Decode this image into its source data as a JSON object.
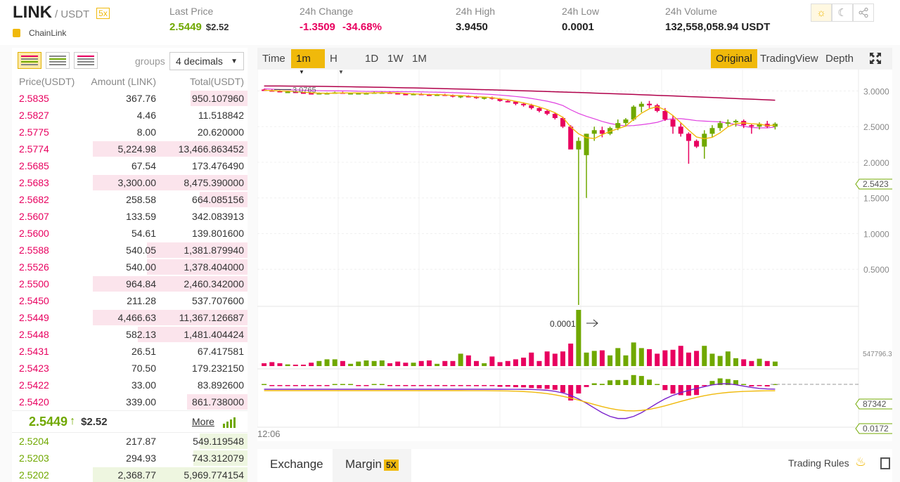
{
  "header": {
    "symbol": "LINK",
    "quote": "/ USDT",
    "leverage": "5x",
    "coin_name": "ChainLink",
    "last_price_label": "Last Price",
    "last_price": "2.5449",
    "last_price_usd": "$2.52",
    "change_label": "24h Change",
    "change_value": "-1.3509",
    "change_pct": "-34.68%",
    "high_label": "24h High",
    "high_value": "3.9450",
    "low_label": "24h Low",
    "low_value": "0.0001",
    "volume_label": "24h Volume",
    "volume_value": "132,558,058.94 USDT",
    "icons": [
      "sun-icon",
      "moon-icon",
      "share-icon"
    ]
  },
  "orderbook": {
    "groups_label": "groups",
    "decimals": "4 decimals",
    "col_price": "Price(USDT)",
    "col_amount": "Amount (LINK)",
    "col_total": "Total(USDT)",
    "asks": [
      {
        "price": "2.5835",
        "amount": "367.76",
        "total": "950.107960",
        "depth": 0.37
      },
      {
        "price": "2.5827",
        "amount": "4.46",
        "total": "11.518842",
        "depth": 0.0
      },
      {
        "price": "2.5775",
        "amount": "8.00",
        "total": "20.620000",
        "depth": 0.0
      },
      {
        "price": "2.5774",
        "amount": "5,224.98",
        "total": "13,466.863452",
        "depth": 1.0
      },
      {
        "price": "2.5685",
        "amount": "67.54",
        "total": "173.476490",
        "depth": 0.0
      },
      {
        "price": "2.5683",
        "amount": "3,300.00",
        "total": "8,475.390000",
        "depth": 1.0
      },
      {
        "price": "2.5682",
        "amount": "258.58",
        "total": "664.085156",
        "depth": 0.31
      },
      {
        "price": "2.5607",
        "amount": "133.59",
        "total": "342.083913",
        "depth": 0.0
      },
      {
        "price": "2.5600",
        "amount": "54.61",
        "total": "139.801600",
        "depth": 0.0
      },
      {
        "price": "2.5588",
        "amount": "540.05",
        "total": "1,381.879940",
        "depth": 0.65
      },
      {
        "price": "2.5526",
        "amount": "540.00",
        "total": "1,378.404000",
        "depth": 0.65
      },
      {
        "price": "2.5500",
        "amount": "964.84",
        "total": "2,460.342000",
        "depth": 1.0
      },
      {
        "price": "2.5450",
        "amount": "211.28",
        "total": "537.707600",
        "depth": 0.0
      },
      {
        "price": "2.5449",
        "amount": "4,466.63",
        "total": "11,367.126687",
        "depth": 1.0
      },
      {
        "price": "2.5448",
        "amount": "582.13",
        "total": "1,481.404424",
        "depth": 0.71
      },
      {
        "price": "2.5431",
        "amount": "26.51",
        "total": "67.417581",
        "depth": 0.0
      },
      {
        "price": "2.5423",
        "amount": "70.50",
        "total": "179.232150",
        "depth": 0.0
      },
      {
        "price": "2.5422",
        "amount": "33.00",
        "total": "83.892600",
        "depth": 0.0
      },
      {
        "price": "2.5420",
        "amount": "339.00",
        "total": "861.738000",
        "depth": 0.39
      }
    ],
    "mid_price": "2.5449",
    "mid_arrow": "↑",
    "mid_usd": "$2.52",
    "more_label": "More",
    "bids": [
      {
        "price": "2.5204",
        "amount": "217.87",
        "total": "549.119548",
        "depth": 0.31
      },
      {
        "price": "2.5203",
        "amount": "294.93",
        "total": "743.312079",
        "depth": 0.35
      },
      {
        "price": "2.5202",
        "amount": "2,368.77",
        "total": "5,969.774154",
        "depth": 1.0
      }
    ]
  },
  "chart": {
    "toolbar": {
      "time": "Time",
      "interval": "1m",
      "hour": "H",
      "day": "1D",
      "week": "1W",
      "month": "1M",
      "original": "Original",
      "tradingview": "TradingView",
      "depth": "Depth"
    },
    "annotation_high": "3.0765",
    "annotation_low": "0.0001",
    "price_tag": "2.5423",
    "volume_top": "547796.3",
    "volume_tag": "87342",
    "macd_tag": "0.0172",
    "time_label": "12:06",
    "colors": {
      "up": "#70a800",
      "down": "#e8005f",
      "ma7": "#f0b90b",
      "ma25": "#e040e0",
      "ma99": "#b0004a",
      "macd": "#7a22cc"
    }
  },
  "chart_data": {
    "type": "candlestick",
    "ylim": [
      0,
      3.3
    ],
    "price_ticks": [
      "3.0000",
      "2.5000",
      "2.0000",
      "1.5000",
      "1.0000",
      "0.5000"
    ],
    "price_tick_values": [
      3.0,
      2.5,
      2.0,
      1.5,
      1.0,
      0.5
    ],
    "candles": [
      [
        3.02,
        3.03,
        3.0,
        3.01
      ],
      [
        3.01,
        3.02,
        2.99,
        3.0
      ],
      [
        3.0,
        3.01,
        2.98,
        2.99
      ],
      [
        2.99,
        3.0,
        2.98,
        2.99
      ],
      [
        2.99,
        3.0,
        2.97,
        2.98
      ],
      [
        2.98,
        2.99,
        2.97,
        2.97
      ],
      [
        2.97,
        2.98,
        2.95,
        2.96
      ],
      [
        2.96,
        2.98,
        2.95,
        2.97
      ],
      [
        2.97,
        2.98,
        2.96,
        2.97
      ],
      [
        2.97,
        2.99,
        2.96,
        2.98
      ],
      [
        2.98,
        2.99,
        2.96,
        2.97
      ],
      [
        2.97,
        2.98,
        2.96,
        2.97
      ],
      [
        2.97,
        2.98,
        2.96,
        2.97
      ],
      [
        2.97,
        2.98,
        2.96,
        2.97
      ],
      [
        2.97,
        2.99,
        2.96,
        2.98
      ],
      [
        2.98,
        2.99,
        2.97,
        2.98
      ],
      [
        2.98,
        2.99,
        2.97,
        2.97
      ],
      [
        2.97,
        2.98,
        2.96,
        2.96
      ],
      [
        2.96,
        2.97,
        2.94,
        2.95
      ],
      [
        2.95,
        2.97,
        2.94,
        2.96
      ],
      [
        2.96,
        2.97,
        2.95,
        2.95
      ],
      [
        2.95,
        2.96,
        2.93,
        2.94
      ],
      [
        2.94,
        2.96,
        2.93,
        2.95
      ],
      [
        2.95,
        2.96,
        2.93,
        2.94
      ],
      [
        2.94,
        2.95,
        2.91,
        2.92
      ],
      [
        2.92,
        2.94,
        2.9,
        2.93
      ],
      [
        2.93,
        2.94,
        2.91,
        2.92
      ],
      [
        2.92,
        2.93,
        2.89,
        2.9
      ],
      [
        2.9,
        2.92,
        2.88,
        2.91
      ],
      [
        2.91,
        2.92,
        2.88,
        2.89
      ],
      [
        2.89,
        2.9,
        2.85,
        2.86
      ],
      [
        2.86,
        2.88,
        2.84,
        2.85
      ],
      [
        2.85,
        2.86,
        2.8,
        2.82
      ],
      [
        2.82,
        2.84,
        2.78,
        2.8
      ],
      [
        2.8,
        2.82,
        2.74,
        2.76
      ],
      [
        2.76,
        2.78,
        2.7,
        2.72
      ],
      [
        2.72,
        2.74,
        2.66,
        2.68
      ],
      [
        2.68,
        2.7,
        2.6,
        2.62
      ],
      [
        2.62,
        2.64,
        2.48,
        2.5
      ],
      [
        2.5,
        2.52,
        2.2,
        2.18
      ],
      [
        2.18,
        2.35,
        0.0001,
        2.3
      ],
      [
        2.1,
        2.4,
        1.5,
        2.4
      ],
      [
        2.4,
        2.5,
        2.3,
        2.45
      ],
      [
        2.45,
        2.5,
        2.35,
        2.4
      ],
      [
        2.4,
        2.5,
        2.38,
        2.48
      ],
      [
        2.48,
        2.6,
        2.45,
        2.55
      ],
      [
        2.55,
        2.62,
        2.5,
        2.6
      ],
      [
        2.6,
        2.8,
        2.58,
        2.78
      ],
      [
        2.78,
        2.85,
        2.7,
        2.82
      ],
      [
        2.82,
        2.86,
        2.76,
        2.8
      ],
      [
        2.8,
        2.82,
        2.7,
        2.72
      ],
      [
        2.72,
        2.76,
        2.58,
        2.6
      ],
      [
        2.6,
        2.66,
        2.4,
        2.5
      ],
      [
        2.5,
        2.55,
        2.36,
        2.4
      ],
      [
        2.4,
        2.42,
        1.98,
        2.3
      ],
      [
        2.3,
        2.32,
        2.2,
        2.22
      ],
      [
        2.22,
        2.45,
        2.05,
        2.4
      ],
      [
        2.4,
        2.52,
        2.35,
        2.48
      ],
      [
        2.48,
        2.58,
        2.44,
        2.55
      ],
      [
        2.55,
        2.6,
        2.5,
        2.56
      ],
      [
        2.56,
        2.6,
        2.5,
        2.58
      ],
      [
        2.58,
        2.6,
        2.48,
        2.52
      ],
      [
        2.52,
        2.54,
        2.4,
        2.5
      ],
      [
        2.5,
        2.56,
        2.46,
        2.54
      ],
      [
        2.54,
        2.58,
        2.48,
        2.5
      ],
      [
        2.5,
        2.56,
        2.46,
        2.54
      ]
    ],
    "volumes": [
      0.05,
      0.07,
      0.05,
      0.03,
      0.02,
      0.02,
      0.06,
      0.09,
      0.12,
      0.12,
      0.09,
      0.04,
      0.08,
      0.1,
      0.09,
      0.1,
      0.05,
      0.08,
      0.06,
      0.06,
      0.09,
      0.1,
      0.04,
      0.09,
      0.09,
      0.22,
      0.19,
      0.09,
      0.05,
      0.17,
      0.07,
      0.09,
      0.12,
      0.15,
      0.24,
      0.09,
      0.26,
      0.22,
      0.26,
      0.4,
      1.0,
      0.24,
      0.27,
      0.28,
      0.19,
      0.32,
      0.19,
      0.42,
      0.32,
      0.3,
      0.22,
      0.28,
      0.29,
      0.36,
      0.24,
      0.27,
      0.36,
      0.22,
      0.18,
      0.26,
      0.14,
      0.12,
      0.09,
      0.13,
      0.09,
      0.08
    ]
  },
  "bottom": {
    "tab_exchange": "Exchange",
    "tab_margin": "Margin",
    "margin_badge": "5X",
    "trading_rules": "Trading Rules"
  }
}
